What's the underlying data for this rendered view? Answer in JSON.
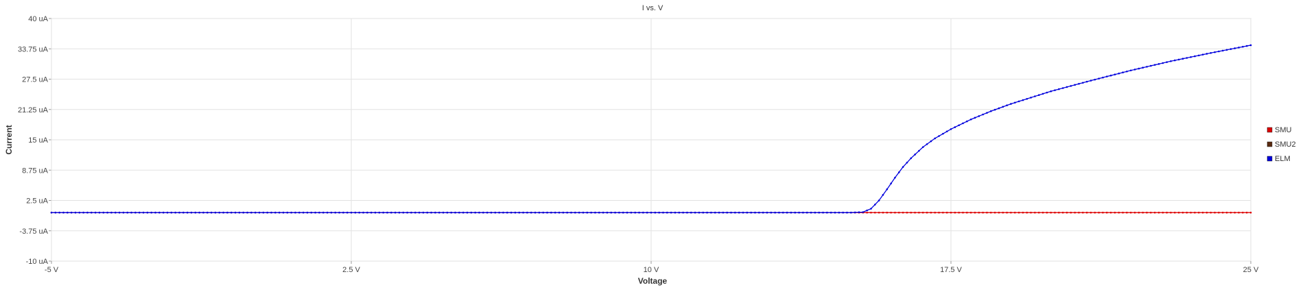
{
  "chart_data": {
    "type": "line",
    "title": "I vs. V",
    "xlabel": "Voltage",
    "ylabel": "Current",
    "xlim": [
      -5,
      25
    ],
    "ylim": [
      -10,
      40
    ],
    "x_ticks": [
      {
        "value": -5,
        "label": "-5 V"
      },
      {
        "value": 2.5,
        "label": "2.5 V"
      },
      {
        "value": 10,
        "label": "10 V"
      },
      {
        "value": 17.5,
        "label": "17.5 V"
      },
      {
        "value": 25,
        "label": "25 V"
      }
    ],
    "y_ticks": [
      {
        "value": 40,
        "label": "40 uA"
      },
      {
        "value": 33.75,
        "label": "33.75 uA"
      },
      {
        "value": 27.5,
        "label": "27.5 uA"
      },
      {
        "value": 21.25,
        "label": "21.25 uA"
      },
      {
        "value": 15,
        "label": "15 uA"
      },
      {
        "value": 8.75,
        "label": "8.75 uA"
      },
      {
        "value": 2.5,
        "label": "2.5 uA"
      },
      {
        "value": -3.75,
        "label": "-3.75 uA"
      },
      {
        "value": -10,
        "label": "-10 uA"
      }
    ],
    "grid": true,
    "legend_position": "right",
    "series": [
      {
        "name": "SMU",
        "color": "#dd0000",
        "x": [
          -5,
          0,
          5,
          10,
          15,
          15.3,
          20,
          25
        ],
        "y": [
          0,
          0,
          0,
          0,
          0,
          0,
          0,
          0
        ]
      },
      {
        "name": "SMU2",
        "color": "#5a2a10",
        "x": [],
        "y": []
      },
      {
        "name": "ELM",
        "color": "#0000dd",
        "x": [
          -5,
          0,
          5,
          10,
          15,
          15.3,
          15.5,
          15.7,
          15.9,
          16.1,
          16.3,
          16.5,
          16.8,
          17.1,
          17.5,
          18,
          18.5,
          19,
          20,
          21,
          22,
          23,
          24,
          25
        ],
        "y": [
          0,
          0,
          0,
          0,
          0,
          0.1,
          0.8,
          2.5,
          4.8,
          7.2,
          9.4,
          11.2,
          13.5,
          15.3,
          17.2,
          19.2,
          20.9,
          22.4,
          25.0,
          27.2,
          29.3,
          31.2,
          32.9,
          34.5
        ]
      }
    ]
  }
}
